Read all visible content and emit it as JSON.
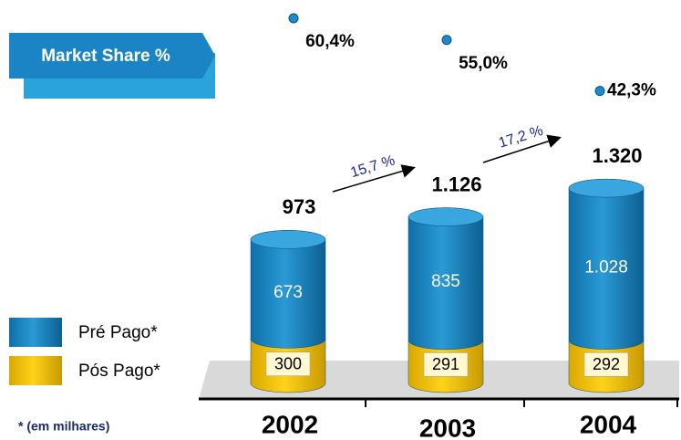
{
  "chart_data": {
    "type": "bar",
    "title": "Market Share %",
    "categories": [
      "2002",
      "2003",
      "2004"
    ],
    "series": [
      {
        "name": "Pré Pago*",
        "color": "#1a8ccb",
        "values": [
          673,
          835,
          1028
        ],
        "value_labels": [
          "673",
          "835",
          "1.028"
        ]
      },
      {
        "name": "Pós Pago*",
        "color": "#f2c400",
        "values": [
          300,
          291,
          292
        ]
      }
    ],
    "totals": [
      973,
      {
        "value": 1126,
        "label": "1.126"
      },
      {
        "value": 1320,
        "label": "1.320"
      }
    ],
    "market_share": {
      "values": [
        60.4,
        55.0,
        42.3
      ],
      "value_labels": [
        "60,4%",
        "55,0%",
        "42,3%"
      ]
    },
    "growth": {
      "values": [
        15.7,
        17.2
      ],
      "value_labels": [
        "15,7 %",
        "17,2 %"
      ]
    },
    "note": "* (em milhares)"
  }
}
